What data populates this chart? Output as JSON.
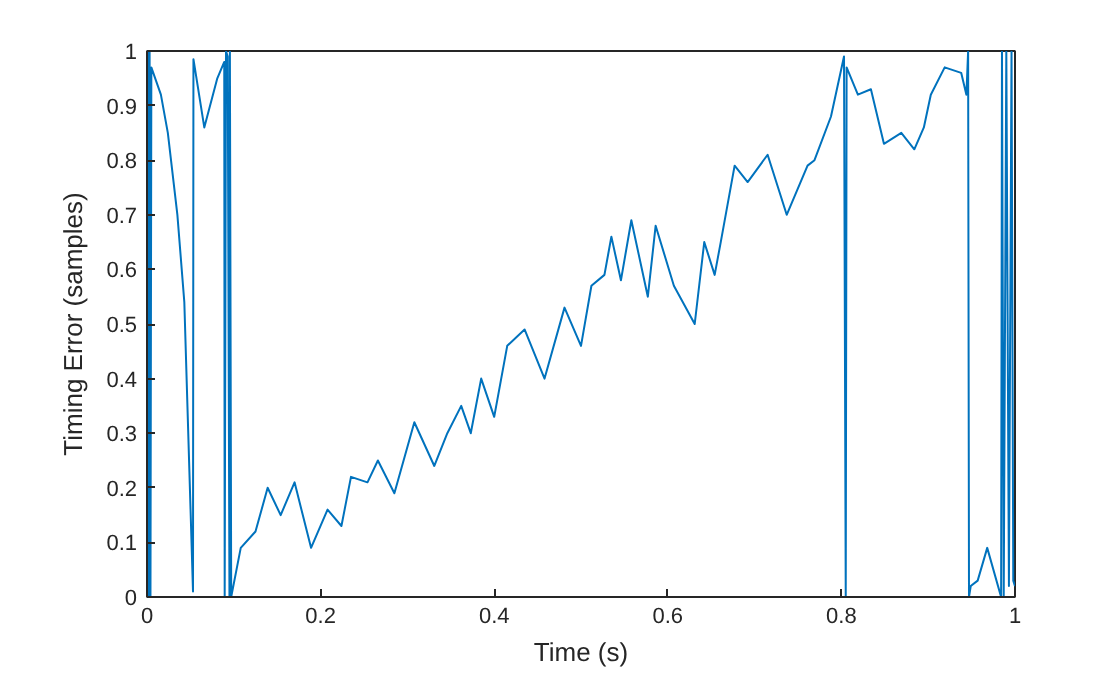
{
  "chart_data": {
    "type": "line",
    "xlabel": "Time (s)",
    "ylabel": "Timing Error (samples)",
    "xlim": [
      0,
      1
    ],
    "ylim": [
      0,
      1
    ],
    "xticks": [
      0,
      0.2,
      0.4,
      0.6,
      0.8,
      1
    ],
    "yticks": [
      0,
      0.1,
      0.2,
      0.3,
      0.4,
      0.5,
      0.6,
      0.7,
      0.8,
      0.9,
      1
    ],
    "grid": false,
    "series": [
      {
        "color": "#0072bd",
        "x": [
          0,
          0.001,
          0.002,
          0.003,
          0.004,
          0.005,
          0.016,
          0.024,
          0.035,
          0.043,
          0.053,
          0.0535,
          0.066,
          0.081,
          0.089,
          0.0895,
          0.091,
          0.093,
          0.095,
          0.0955,
          0.097,
          0.108,
          0.125,
          0.139,
          0.154,
          0.17,
          0.189,
          0.208,
          0.224,
          0.235,
          0.254,
          0.266,
          0.285,
          0.308,
          0.331,
          0.346,
          0.362,
          0.373,
          0.385,
          0.4,
          0.415,
          0.435,
          0.458,
          0.481,
          0.5,
          0.512,
          0.527,
          0.535,
          0.546,
          0.558,
          0.577,
          0.586,
          0.607,
          0.631,
          0.642,
          0.654,
          0.661,
          0.677,
          0.692,
          0.715,
          0.737,
          0.761,
          0.769,
          0.788,
          0.803,
          0.805,
          0.806,
          0.819,
          0.834,
          0.849,
          0.869,
          0.884,
          0.895,
          0.903,
          0.919,
          0.938,
          0.944,
          0.946,
          0.947,
          0.949,
          0.957,
          0.968,
          0.984,
          0.985,
          0.987,
          0.99,
          0.993,
          0.996,
          0.998,
          1
        ],
        "values": [
          0.5,
          1,
          0,
          1,
          0,
          0.97,
          0.92,
          0.85,
          0.7,
          0.54,
          0.01,
          0.985,
          0.86,
          0.95,
          0.98,
          0,
          1,
          0.99,
          0,
          1,
          0,
          0.09,
          0.12,
          0.2,
          0.15,
          0.21,
          0.09,
          0.16,
          0.13,
          0.22,
          0.21,
          0.25,
          0.19,
          0.32,
          0.24,
          0.3,
          0.35,
          0.3,
          0.4,
          0.33,
          0.46,
          0.49,
          0.4,
          0.53,
          0.46,
          0.57,
          0.59,
          0.66,
          0.58,
          0.69,
          0.55,
          0.68,
          0.57,
          0.5,
          0.65,
          0.59,
          0.65,
          0.79,
          0.76,
          0.81,
          0.7,
          0.79,
          0.8,
          0.88,
          0.99,
          0,
          0.97,
          0.92,
          0.93,
          0.83,
          0.85,
          0.82,
          0.86,
          0.92,
          0.97,
          0.96,
          0.92,
          1,
          0,
          0.02,
          0.03,
          0.09,
          0,
          1,
          0,
          1,
          0.02,
          1,
          0.03,
          0.02
        ]
      }
    ]
  }
}
